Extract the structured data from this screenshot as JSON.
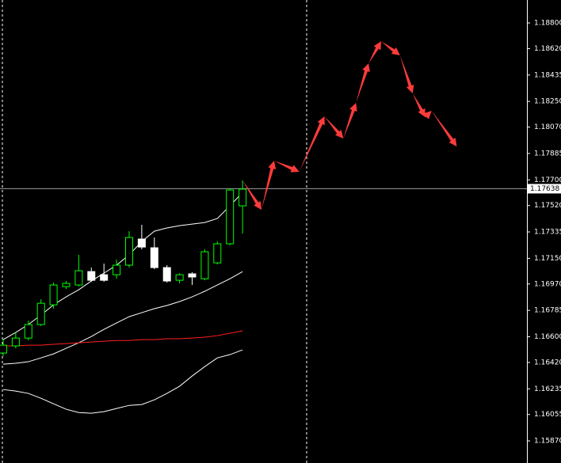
{
  "chart_data": {
    "type": "candlestick",
    "ylim": [
      1.15715,
      1.18961
    ],
    "xlim": [
      -0.25,
      41.57
    ],
    "yticks": [
      {
        "value": 1.188,
        "label": "1.18800"
      },
      {
        "value": 1.1862,
        "label": "1.18620"
      },
      {
        "value": 1.18435,
        "label": "1.18435"
      },
      {
        "value": 1.1825,
        "label": "1.18250"
      },
      {
        "value": 1.1807,
        "label": "1.18070"
      },
      {
        "value": 1.17885,
        "label": "1.17885"
      },
      {
        "value": 1.177,
        "label": "1.17700"
      },
      {
        "value": 1.1752,
        "label": "1.17520"
      },
      {
        "value": 1.17335,
        "label": "1.17335"
      },
      {
        "value": 1.1715,
        "label": "1.17150"
      },
      {
        "value": 1.1697,
        "label": "1.16970"
      },
      {
        "value": 1.16785,
        "label": "1.16785"
      },
      {
        "value": 1.166,
        "label": "1.16600"
      },
      {
        "value": 1.1642,
        "label": "1.16420"
      },
      {
        "value": 1.16235,
        "label": "1.16235"
      },
      {
        "value": 1.16055,
        "label": "1.16055"
      },
      {
        "value": 1.1587,
        "label": "1.15870"
      }
    ],
    "current_price": {
      "value": 1.17638,
      "label": "1.17638"
    },
    "bull_color": "#00ff00",
    "bear_color": "#ffffff",
    "candles": {
      "x": [
        0,
        1,
        2,
        3,
        4,
        5,
        6,
        7,
        8,
        9,
        10,
        11,
        12,
        13,
        14,
        15,
        16,
        17,
        18,
        19
      ],
      "open": [
        1.16486,
        1.16536,
        1.16591,
        1.16686,
        1.16824,
        1.16952,
        1.16963,
        1.17057,
        1.17035,
        1.17035,
        1.17102,
        1.17285,
        1.17224,
        1.17085,
        1.16996,
        1.17041,
        1.17007,
        1.17118,
        1.17252,
        1.17518
      ],
      "high": [
        1.16586,
        1.1663,
        1.16713,
        1.16863,
        1.1698,
        1.16991,
        1.17174,
        1.17085,
        1.17113,
        1.17141,
        1.1734,
        1.17385,
        1.17296,
        1.17102,
        1.17046,
        1.17052,
        1.17213,
        1.17268,
        1.1764,
        1.17696
      ],
      "low": [
        1.16464,
        1.16519,
        1.16575,
        1.16675,
        1.16797,
        1.16935,
        1.16952,
        1.16985,
        1.16985,
        1.17007,
        1.17085,
        1.17213,
        1.17074,
        1.1698,
        1.16974,
        1.16963,
        1.16996,
        1.17107,
        1.17241,
        1.17324
      ],
      "close": [
        1.16541,
        1.16591,
        1.16686,
        1.16835,
        1.16963,
        1.16974,
        1.17063,
        1.16996,
        1.16996,
        1.17102,
        1.17296,
        1.17229,
        1.17085,
        1.16991,
        1.17035,
        1.17019,
        1.17196,
        1.17252,
        1.17629,
        1.17635
      ]
    },
    "lines": [
      {
        "color": "#ffffff",
        "values": [
          1.1658,
          1.1663,
          1.16686,
          1.16752,
          1.16824,
          1.1688,
          1.1693,
          1.16991,
          1.17046,
          1.17102,
          1.17174,
          1.17268,
          1.1734,
          1.17363,
          1.17379,
          1.1739,
          1.17401,
          1.17429,
          1.17518,
          1.17612
        ]
      },
      {
        "color": "#ffffff",
        "values": [
          1.16408,
          1.16414,
          1.16425,
          1.16452,
          1.1648,
          1.16519,
          1.16558,
          1.16602,
          1.16652,
          1.16697,
          1.16741,
          1.16769,
          1.16797,
          1.16819,
          1.16847,
          1.1688,
          1.16919,
          1.16963,
          1.17007,
          1.17057
        ]
      },
      {
        "color": "#ff2020",
        "values": [
          1.16536,
          1.16536,
          1.16541,
          1.16541,
          1.16547,
          1.16552,
          1.16558,
          1.16563,
          1.16569,
          1.16574,
          1.16574,
          1.1658,
          1.1658,
          1.16586,
          1.16586,
          1.16591,
          1.16597,
          1.16608,
          1.16625,
          1.16641
        ]
      },
      {
        "color": "#ffffff",
        "values": [
          1.1623,
          1.16219,
          1.16203,
          1.16169,
          1.1613,
          1.16092,
          1.16069,
          1.16064,
          1.16075,
          1.16097,
          1.16119,
          1.16125,
          1.16158,
          1.16203,
          1.16253,
          1.16325,
          1.16391,
          1.16452,
          1.16475,
          1.16508
        ]
      }
    ],
    "forecast": {
      "color": "#ff3b3b",
      "x": [
        19,
        20.5,
        21.5,
        23.5,
        25.5,
        27,
        28,
        29,
        30,
        31.5,
        32.5,
        33.5,
        34,
        36
      ],
      "values": [
        1.17696,
        1.1749,
        1.17834,
        1.17757,
        1.18145,
        1.1799,
        1.1824,
        1.18517,
        1.18672,
        1.18573,
        1.18306,
        1.1814,
        1.18184,
        1.17934
      ]
    }
  }
}
